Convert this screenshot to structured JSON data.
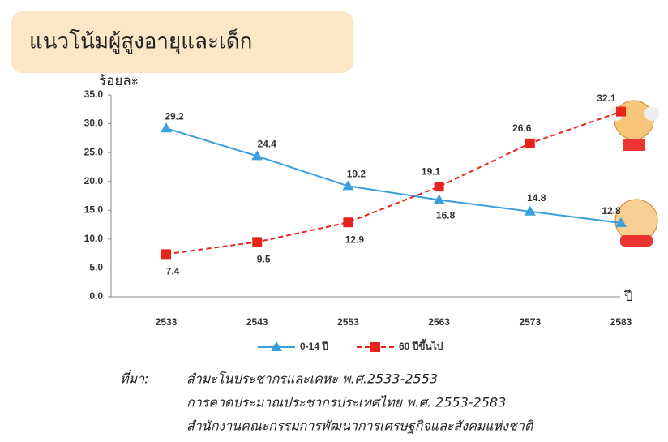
{
  "chart_data": {
    "type": "line",
    "title": "แนวโน้มผู้สูงอายุและเด็ก",
    "y_label": "ร้อยละ",
    "x_label": "ปี",
    "categories": [
      "2533",
      "2543",
      "2553",
      "2563",
      "2573",
      "2583"
    ],
    "series": [
      {
        "name": "0-14 ปี",
        "color": "#3a9fdc",
        "values": [
          29.2,
          24.4,
          19.2,
          16.8,
          14.8,
          12.8
        ]
      },
      {
        "name": "60 ปีขึ้นไป",
        "color": "#e8231c",
        "values": [
          7.4,
          9.5,
          12.9,
          19.1,
          26.6,
          32.1
        ]
      }
    ],
    "ylim": [
      0,
      35
    ],
    "yticks": [
      {
        "value": 0,
        "label": "0.0"
      },
      {
        "value": 5,
        "label": "5.0"
      },
      {
        "value": 10,
        "label": "10.0"
      },
      {
        "value": 15,
        "label": "15.0"
      },
      {
        "value": 20,
        "label": "20.0"
      },
      {
        "value": 25,
        "label": "25.0"
      },
      {
        "value": 30,
        "label": "30.0"
      },
      {
        "value": 35,
        "label": "35.0"
      }
    ],
    "legend": "bottom"
  },
  "source": {
    "label": "ที่มา:",
    "lines": [
      "สำมะโนประชากรและเคหะ  พ.ศ.2533-2553",
      "การคาดประมาณประชากรประเทศไทย  พ.ศ.  2553-2583",
      "สำนักงานคณะกรรมการพัฒนาการเศรษฐกิจและสังคมแห่งชาติ"
    ]
  }
}
